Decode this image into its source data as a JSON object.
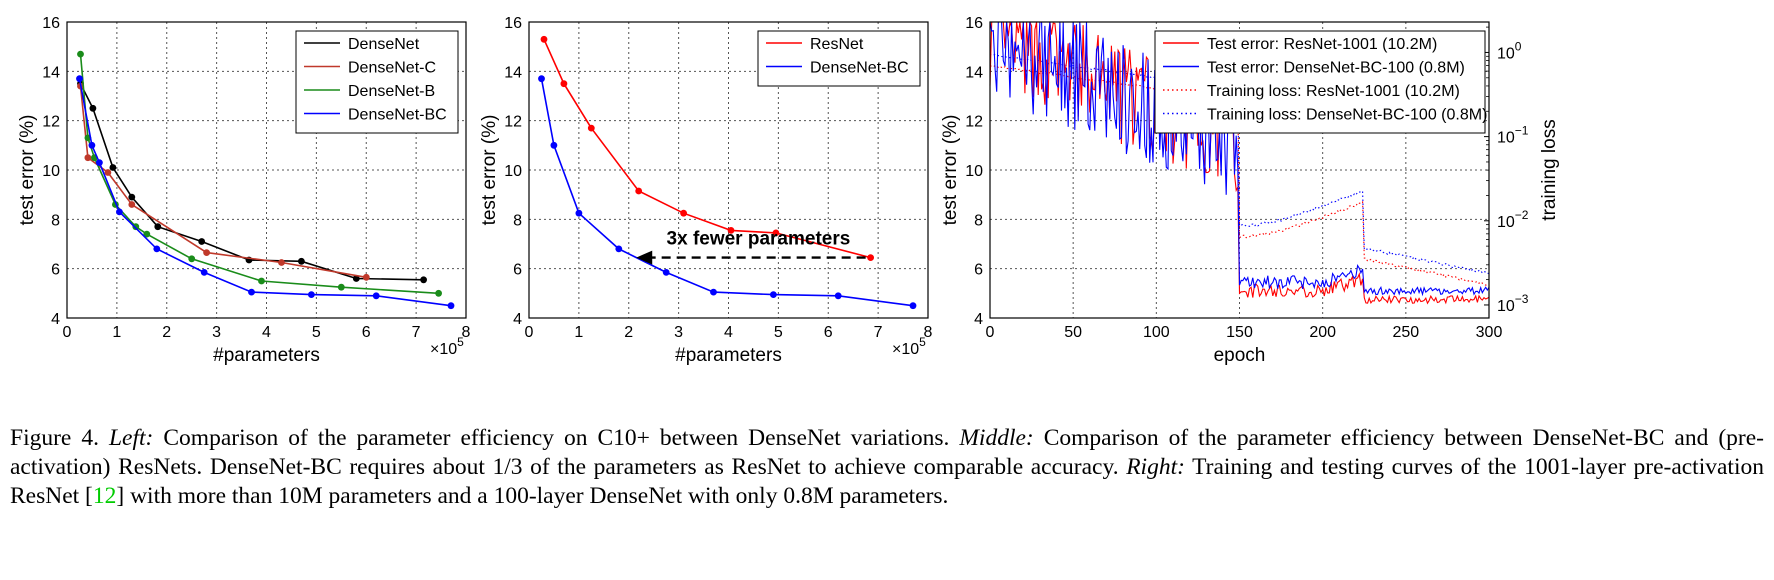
{
  "chart_data": [
    {
      "type": "line",
      "xlabel": "#parameters",
      "ylabel": "test error (%)",
      "x_multiplier": "×10",
      "x_multiplier_exp": "5",
      "xlim": [
        0,
        8
      ],
      "ylim": [
        4,
        16
      ],
      "xticks": [
        "0",
        "1",
        "2",
        "3",
        "4",
        "5",
        "6",
        "7",
        "8"
      ],
      "yticks": [
        "4",
        "6",
        "8",
        "10",
        "12",
        "14",
        "16"
      ],
      "grid": true,
      "legend_position": "top-right",
      "series": [
        {
          "name": "DenseNet",
          "color": "#000000",
          "x": [
            0.27,
            0.52,
            0.92,
            1.3,
            1.82,
            2.7,
            3.65,
            4.7,
            5.8,
            7.15
          ],
          "y": [
            13.5,
            12.5,
            10.1,
            8.9,
            7.7,
            7.1,
            6.35,
            6.3,
            5.6,
            5.55
          ]
        },
        {
          "name": "DenseNet-C",
          "color": "#c0392b",
          "x": [
            0.27,
            0.42,
            0.82,
            1.3,
            2.8,
            4.3,
            6.0
          ],
          "y": [
            13.4,
            10.5,
            9.9,
            8.6,
            6.65,
            6.25,
            5.65
          ]
        },
        {
          "name": "DenseNet-B",
          "color": "#1a8c1a",
          "x": [
            0.27,
            0.42,
            0.55,
            0.97,
            1.38,
            1.6,
            2.5,
            3.9,
            5.5,
            7.45
          ],
          "y": [
            14.7,
            11.3,
            10.5,
            8.6,
            7.7,
            7.4,
            6.4,
            5.5,
            5.25,
            5.0
          ]
        },
        {
          "name": "DenseNet-BC",
          "color": "#0000ff",
          "x": [
            0.25,
            0.5,
            0.65,
            1.05,
            1.8,
            2.75,
            3.7,
            4.9,
            6.2,
            7.7
          ],
          "y": [
            13.7,
            11.0,
            10.3,
            8.3,
            6.8,
            5.85,
            5.05,
            4.95,
            4.9,
            4.5
          ]
        }
      ]
    },
    {
      "type": "line",
      "xlabel": "#parameters",
      "ylabel": "test error (%)",
      "x_multiplier": "×10",
      "x_multiplier_exp": "5",
      "xlim": [
        0,
        8
      ],
      "ylim": [
        4,
        16
      ],
      "xticks": [
        "0",
        "1",
        "2",
        "3",
        "4",
        "5",
        "6",
        "7",
        "8"
      ],
      "yticks": [
        "4",
        "6",
        "8",
        "10",
        "12",
        "14",
        "16"
      ],
      "grid": true,
      "legend_position": "top-right",
      "annotation": "3x fewer parameters",
      "series": [
        {
          "name": "ResNet",
          "color": "#ff0000",
          "x": [
            0.3,
            0.7,
            1.25,
            2.2,
            3.1,
            4.05,
            4.95,
            6.85
          ],
          "y": [
            15.3,
            13.5,
            11.7,
            9.15,
            8.25,
            7.55,
            7.45,
            6.45
          ]
        },
        {
          "name": "DenseNet-BC",
          "color": "#0000ff",
          "x": [
            0.25,
            0.5,
            1.0,
            1.8,
            2.75,
            3.7,
            4.9,
            6.2,
            7.7
          ],
          "y": [
            13.7,
            11.0,
            8.25,
            6.8,
            5.85,
            5.05,
            4.95,
            4.9,
            4.5
          ]
        }
      ]
    },
    {
      "type": "line",
      "xlabel": "epoch",
      "ylabel": "test error (%)",
      "y2label": "training loss",
      "xlim": [
        0,
        300
      ],
      "ylim": [
        4,
        16
      ],
      "y2scale": "log",
      "y2lim": [
        0.0007,
        2.3
      ],
      "xticks": [
        "0",
        "50",
        "100",
        "150",
        "200",
        "250",
        "300"
      ],
      "yticks": [
        "4",
        "6",
        "8",
        "10",
        "12",
        "14",
        "16"
      ],
      "y2ticks": [
        {
          "base": "10",
          "exp": "0"
        },
        {
          "base": "10",
          "exp": "−1"
        },
        {
          "base": "10",
          "exp": "−2"
        },
        {
          "base": "10",
          "exp": "−3"
        }
      ],
      "grid": true,
      "legend_position": "top-right",
      "series": [
        {
          "name": "Test error: ResNet-1001 (10.2M)",
          "color": "#ff0000",
          "style": "solid",
          "axis": "left"
        },
        {
          "name": "Test error: DenseNet-BC-100 (0.8M)",
          "color": "#0000ff",
          "style": "solid",
          "axis": "left"
        },
        {
          "name": "Training loss: ResNet-1001 (10.2M)",
          "color": "#ff0000",
          "style": "dotted",
          "axis": "right"
        },
        {
          "name": "Training loss: DenseNet-BC-100 (0.8M)",
          "color": "#0000ff",
          "style": "dotted",
          "axis": "right"
        }
      ]
    }
  ],
  "caption": {
    "fig_label": "Figure 4.",
    "left_label": "Left:",
    "left_text": " Comparison of the parameter efficiency on C10+ between DenseNet variations. ",
    "middle_label": "Middle:",
    "middle_text": " Comparison of the parameter efficiency between DenseNet-BC and (pre-activation) ResNets. DenseNet-BC requires about 1/3 of the parameters as ResNet to achieve comparable accuracy. ",
    "right_label": "Right:",
    "right_text": " Training and testing curves of the 1001-layer pre-activation ResNet [",
    "ref": "12",
    "right_text2": "] with more than 10M parameters and a 100-layer DenseNet with only 0.8M parameters."
  }
}
